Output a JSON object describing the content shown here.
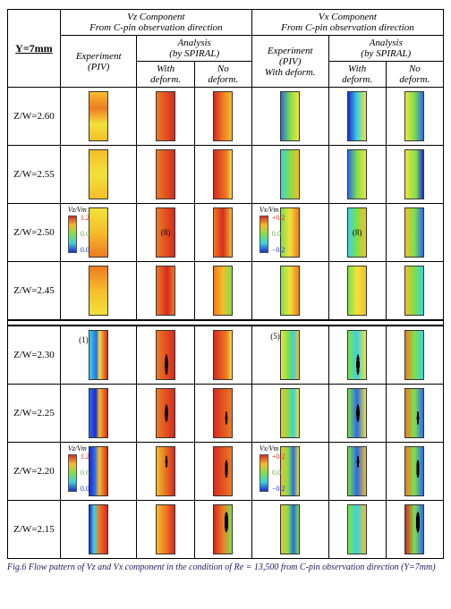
{
  "header": {
    "y_label": "Y=7mm",
    "vz_group": "Vz Component\nFrom C-pin observation direction",
    "vx_group": "Vx Component\nFrom C-pin observation direction",
    "experiment_piv": "Experiment\n(PIV)",
    "experiment_piv_deform": "Experiment\n(PIV)\nWith deform.",
    "analysis": "Analysis\n(by SPIRAL)",
    "with_deform": "With\ndeform.",
    "no_deform": "No\ndeform."
  },
  "row_labels": [
    "Z/W=2.60",
    "Z/W=2.55",
    "Z/W=2.50",
    "Z/W=2.45",
    "Z/W=2.30",
    "Z/W=2.25",
    "Z/W=2.20",
    "Z/W=2.15"
  ],
  "blocks": {
    "upper_rows": [
      0,
      1,
      2,
      3
    ],
    "lower_rows": [
      4,
      5,
      6,
      7
    ]
  },
  "annotations": {
    "vz_exp_lower_1": "(1)",
    "vz_with_upper_8": "(8)",
    "vx_exp_lower_5": "(5)",
    "vx_with_upper_8": "(8)"
  },
  "colorbars": {
    "vz": {
      "title": "Vz/Vm",
      "max": "1.2",
      "mid": "0.6",
      "min": "0.0"
    },
    "vx": {
      "title": "Vx/Vm",
      "max": "+0.2",
      "mid": "0.0",
      "min": "−0.2"
    }
  },
  "colors": {
    "jet_stops": [
      "#1a2bd4",
      "#2a6be8",
      "#3bd2e0",
      "#7fe04a",
      "#f1e23a",
      "#f6bd29",
      "#ee7a23",
      "#d62b1f"
    ],
    "black": "#000000"
  },
  "strips": {
    "comment": "24 strips total (6 columns × 4 rows per block × 2 blocks). Each entry is a CSS background shorthand approximating the heatmap.",
    "upper": {
      "vz_exp": [
        "linear-gradient(to bottom,#f6bd29,#ee7a23,#f1e23a,#f6bd29)",
        "linear-gradient(to bottom,#f6bd29,#f1e23a,#f6bd29)",
        "linear-gradient(to bottom,#f1e23a,#f6bd29,#ee7a23)",
        "linear-gradient(to bottom,#ee7a23,#f6bd29,#f1e23a)"
      ],
      "vz_with": [
        "linear-gradient(to right,#ee7a23,#d62b1f)",
        "linear-gradient(to right,#ee7a23,#d62b1f)",
        "linear-gradient(to right,#ee7a23,#d62b1f)",
        "linear-gradient(to right,#ee7a23 0%,#d62b1f 60%,#ee7a23 100%)"
      ],
      "vz_no": [
        "linear-gradient(to right,#d62b1f,#ee7a23,#f6bd29)",
        "linear-gradient(to right,#d62b1f,#ee7a23 70%,#f1e23a)",
        "linear-gradient(to right,#ee7a23,#d62b1f 50%,#f6bd29)",
        "linear-gradient(to right,#ee7a23,#f6bd29,#7fe04a)"
      ],
      "vx_exp": [
        "linear-gradient(to right,#2a6be8,#7fe04a,#f1e23a)",
        "linear-gradient(to right,#3bd2e0,#7fe04a,#f6bd29)",
        "linear-gradient(to right,#7fe04a,#f1e23a,#ee7a23)",
        "linear-gradient(to right,#7fe04a,#f1e23a,#ee7a23)"
      ],
      "vx_with": [
        "linear-gradient(to right,#1a2bd4,#3bd2e0,#f1e23a)",
        "linear-gradient(to right,#2a6be8,#7fe04a,#f1e23a)",
        "linear-gradient(to right,#3bd2e0,#7fe04a,#f6bd29)",
        "linear-gradient(to right,#7fe04a,#f1e23a,#f6bd29)"
      ],
      "vx_no": [
        "linear-gradient(to right,#f1e23a,#7fe04a,#2a6be8)",
        "linear-gradient(to right,#f1e23a,#7fe04a 60%,#1a2bd4)",
        "linear-gradient(to right,#f6bd29,#7fe04a,#2a6be8)",
        "linear-gradient(to right,#f6bd29,#7fe04a,#3bd2e0)"
      ]
    },
    "lower": {
      "vz_exp": [
        "linear-gradient(to right,#3bd2e0,#2a6be8 40%,#f1e23a 55%,#d62b1f)",
        "linear-gradient(to right,#2a6be8,#1a2bd4 35%,#f6bd29 55%,#d62b1f)",
        "linear-gradient(to right,#1a2bd4 0%,#2a6be8 30%,#f6bd29 55%,#d62b1f)",
        "linear-gradient(to right,#1a2bd4 0%,#3bd2e0 25%,#ee7a23 55%,#d62b1f)"
      ],
      "vz_with": [
        "radial-gradient(ellipse 30% 70% at 55% 70%,#000 0%,#000 30%,transparent 31%),linear-gradient(to right,#ee7a23,#d62b1f)",
        "radial-gradient(ellipse 30% 60% at 55% 50%,#000 0%,#000 30%,transparent 31%),linear-gradient(to right,#ee7a23,#d62b1f)",
        "radial-gradient(ellipse 25% 50% at 55% 30%,#000 0%,#000 25%,transparent 26%),linear-gradient(to right,#f6bd29,#d62b1f)",
        "linear-gradient(to right,#f6bd29,#ee7a23,#d62b1f)"
      ],
      "vz_no": [
        "linear-gradient(to right,#d62b1f,#ee7a23 70%,#f1e23a)",
        "radial-gradient(ellipse 25% 55% at 70% 60%,#000 0%,#000 25%,transparent 26%),linear-gradient(to right,#d62b1f,#ee7a23)",
        "radial-gradient(ellipse 30% 65% at 70% 45%,#000 0%,#000 28%,transparent 29%),linear-gradient(to right,#d62b1f,#ee7a23)",
        "radial-gradient(ellipse 35% 70% at 70% 35%,#000 0%,#000 30%,transparent 31%),linear-gradient(to right,#d62b1f,#ee7a23,#7fe04a)"
      ],
      "vx_exp": [
        "linear-gradient(to right,#f1e23a,#7fe04a 40%,#3bd2e0 70%,#f6bd29)",
        "linear-gradient(to right,#f6bd29,#7fe04a 40%,#3bd2e0 70%,#f1e23a)",
        "linear-gradient(to right,#f6bd29,#7fe04a 40%,#2a6be8 70%,#f1e23a)",
        "linear-gradient(to right,#f6bd29,#7fe04a 40%,#2a6be8 70%,#7fe04a)"
      ],
      "vx_with": [
        "radial-gradient(ellipse 30% 70% at 55% 70%,#000 0%,#000 30%,transparent 31%),linear-gradient(to right,#7fe04a,#3bd2e0,#f1e23a)",
        "radial-gradient(ellipse 30% 60% at 55% 50%,#000 0%,#000 30%,transparent 31%),linear-gradient(to right,#7fe04a,#2a6be8,#f1e23a)",
        "radial-gradient(ellipse 25% 50% at 55% 30%,#000 0%,#000 25%,transparent 26%),linear-gradient(to right,#7fe04a,#2a6be8,#f6bd29)",
        "linear-gradient(to right,#7fe04a,#3bd2e0,#f6bd29)"
      ],
      "vx_no": [
        "linear-gradient(to right,#ee7a23,#7fe04a,#3bd2e0)",
        "radial-gradient(ellipse 25% 55% at 70% 60%,#000 0%,#000 25%,transparent 26%),linear-gradient(to right,#ee7a23,#7fe04a,#2a6be8)",
        "radial-gradient(ellipse 30% 65% at 70% 45%,#000 0%,#000 28%,transparent 29%),linear-gradient(to right,#ee7a23,#7fe04a,#2a6be8)",
        "radial-gradient(ellipse 35% 70% at 70% 35%,#000 0%,#000 30%,transparent 31%),linear-gradient(to right,#d62b1f,#7fe04a,#2a6be8)"
      ]
    }
  },
  "caption": "Fig.6 Flow pattern of Vz and Vx component in the condition of Re = 13,500 from C-pin observation direction (Y=7mm)"
}
